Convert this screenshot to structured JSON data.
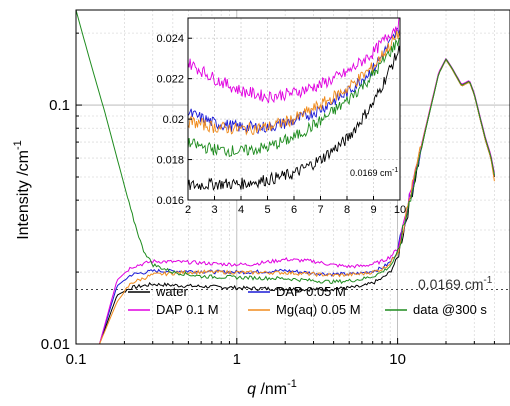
{
  "chart_data": {
    "type": "line",
    "xlabel": {
      "main": "q",
      "unit": " /nm",
      "sup": "-1"
    },
    "ylabel": {
      "main": "Intensity /cm",
      "sup": "-1"
    },
    "xscale": "log",
    "yscale": "log",
    "xlim": [
      0.1,
      50
    ],
    "ylim": [
      0.01,
      0.25
    ],
    "x_ticks": [
      "0.1",
      "1",
      "10"
    ],
    "y_ticks": [
      "0.01",
      "0.1"
    ],
    "grid": true,
    "reference_line": {
      "y": 0.0169,
      "label": "0.0169 cm",
      "sup": "-1",
      "style": "dotted"
    },
    "legend_position": "bottom-center",
    "series": [
      {
        "name": "water",
        "color": "#000000",
        "points": [
          [
            0.14,
            0.01
          ],
          [
            0.18,
            0.016
          ],
          [
            0.22,
            0.0172
          ],
          [
            0.3,
            0.0178
          ],
          [
            0.5,
            0.0175
          ],
          [
            0.8,
            0.0173
          ],
          [
            1.2,
            0.0171
          ],
          [
            2,
            0.017
          ],
          [
            3,
            0.0169
          ],
          [
            4,
            0.017
          ],
          [
            5,
            0.0172
          ],
          [
            6,
            0.0174
          ],
          [
            7,
            0.018
          ],
          [
            8,
            0.0188
          ],
          [
            9,
            0.02
          ],
          [
            10,
            0.023
          ],
          [
            12,
            0.04
          ],
          [
            15,
            0.08
          ],
          [
            18,
            0.135
          ],
          [
            20,
            0.155
          ],
          [
            22,
            0.14
          ],
          [
            25,
            0.12
          ],
          [
            28,
            0.125
          ],
          [
            30,
            0.11
          ],
          [
            35,
            0.072
          ],
          [
            38,
            0.06
          ],
          [
            40,
            0.05
          ]
        ]
      },
      {
        "name": "DAP 0.05 M",
        "color": "#1a1ad6",
        "points": [
          [
            0.14,
            0.01
          ],
          [
            0.18,
            0.0175
          ],
          [
            0.22,
            0.0195
          ],
          [
            0.3,
            0.0202
          ],
          [
            0.5,
            0.0202
          ],
          [
            0.8,
            0.02
          ],
          [
            1.2,
            0.02
          ],
          [
            2,
            0.0203
          ],
          [
            3,
            0.0198
          ],
          [
            4,
            0.0196
          ],
          [
            5,
            0.0196
          ],
          [
            6,
            0.0198
          ],
          [
            7,
            0.0202
          ],
          [
            8,
            0.0208
          ],
          [
            9,
            0.022
          ],
          [
            10,
            0.0245
          ],
          [
            12,
            0.042
          ],
          [
            15,
            0.081
          ],
          [
            18,
            0.136
          ],
          [
            20,
            0.156
          ],
          [
            22,
            0.141
          ],
          [
            25,
            0.121
          ],
          [
            28,
            0.126
          ],
          [
            30,
            0.111
          ],
          [
            35,
            0.073
          ],
          [
            38,
            0.061
          ],
          [
            40,
            0.051
          ]
        ]
      },
      {
        "name": "DAP 0.1 M",
        "color": "#e000e0",
        "points": [
          [
            0.14,
            0.01
          ],
          [
            0.18,
            0.0185
          ],
          [
            0.22,
            0.021
          ],
          [
            0.3,
            0.0222
          ],
          [
            0.5,
            0.022
          ],
          [
            0.8,
            0.0216
          ],
          [
            1.2,
            0.0215
          ],
          [
            2,
            0.0226
          ],
          [
            3,
            0.0222
          ],
          [
            4,
            0.0214
          ],
          [
            5,
            0.0211
          ],
          [
            6,
            0.0212
          ],
          [
            7,
            0.0216
          ],
          [
            8,
            0.0222
          ],
          [
            9,
            0.0232
          ],
          [
            10,
            0.025
          ],
          [
            12,
            0.043
          ],
          [
            15,
            0.082
          ],
          [
            18,
            0.137
          ],
          [
            20,
            0.157
          ],
          [
            22,
            0.142
          ],
          [
            25,
            0.122
          ],
          [
            28,
            0.127
          ],
          [
            30,
            0.112
          ],
          [
            35,
            0.074
          ],
          [
            38,
            0.062
          ],
          [
            40,
            0.052
          ]
        ]
      },
      {
        "name": "Mg(aq) 0.05 M",
        "color": "#f08c1e",
        "points": [
          [
            0.14,
            0.01
          ],
          [
            0.18,
            0.015
          ],
          [
            0.22,
            0.018
          ],
          [
            0.3,
            0.0195
          ],
          [
            0.5,
            0.02
          ],
          [
            0.8,
            0.02
          ],
          [
            1.2,
            0.0199
          ],
          [
            2,
            0.0199
          ],
          [
            3,
            0.0196
          ],
          [
            4,
            0.0194
          ],
          [
            5,
            0.0195
          ],
          [
            6,
            0.0197
          ],
          [
            7,
            0.02
          ],
          [
            8,
            0.0206
          ],
          [
            9,
            0.0218
          ],
          [
            10,
            0.0243
          ],
          [
            12,
            0.042
          ],
          [
            15,
            0.081
          ],
          [
            18,
            0.135
          ],
          [
            20,
            0.155
          ],
          [
            22,
            0.14
          ],
          [
            25,
            0.12
          ],
          [
            28,
            0.125
          ],
          [
            30,
            0.11
          ],
          [
            35,
            0.072
          ],
          [
            38,
            0.06
          ],
          [
            40,
            0.048
          ]
        ]
      },
      {
        "name": "data @300 s",
        "color": "#1f8c1f",
        "points": [
          [
            0.1,
            0.25
          ],
          [
            0.12,
            0.16
          ],
          [
            0.15,
            0.095
          ],
          [
            0.18,
            0.06
          ],
          [
            0.22,
            0.036
          ],
          [
            0.26,
            0.025
          ],
          [
            0.3,
            0.0215
          ],
          [
            0.4,
            0.02
          ],
          [
            0.6,
            0.0192
          ],
          [
            1,
            0.019
          ],
          [
            2,
            0.0188
          ],
          [
            3,
            0.0184
          ],
          [
            4,
            0.0182
          ],
          [
            5,
            0.0184
          ],
          [
            6,
            0.0187
          ],
          [
            7,
            0.0192
          ],
          [
            8,
            0.02
          ],
          [
            9,
            0.0212
          ],
          [
            10,
            0.0238
          ],
          [
            12,
            0.041
          ],
          [
            15,
            0.08
          ],
          [
            18,
            0.135
          ],
          [
            20,
            0.156
          ],
          [
            22,
            0.141
          ],
          [
            25,
            0.121
          ],
          [
            28,
            0.126
          ],
          [
            30,
            0.111
          ],
          [
            35,
            0.073
          ],
          [
            38,
            0.061
          ],
          [
            40,
            0.051
          ]
        ]
      }
    ],
    "inset": {
      "xscale": "linear",
      "xlim": [
        2,
        10
      ],
      "ylim": [
        0.016,
        0.025
      ],
      "x_ticks": [
        "2",
        "3",
        "4",
        "5",
        "6",
        "7",
        "8",
        "9",
        "10"
      ],
      "y_ticks": [
        "0.016",
        "0.018",
        "0.02",
        "0.022",
        "0.024"
      ],
      "annotation": {
        "label": "0.0169 cm",
        "sup": "-1"
      },
      "series": [
        {
          "name": "water",
          "color": "#000000",
          "points": [
            [
              2,
              0.0167
            ],
            [
              3,
              0.0168
            ],
            [
              4,
              0.0168
            ],
            [
              5,
              0.017
            ],
            [
              6,
              0.0173
            ],
            [
              7,
              0.018
            ],
            [
              8,
              0.019
            ],
            [
              9,
              0.0208
            ],
            [
              10,
              0.0235
            ]
          ]
        },
        {
          "name": "DAP 0.05 M",
          "color": "#1a1ad6",
          "points": [
            [
              2,
              0.0203
            ],
            [
              3,
              0.0198
            ],
            [
              4,
              0.0196
            ],
            [
              5,
              0.0196
            ],
            [
              6,
              0.0199
            ],
            [
              7,
              0.0205
            ],
            [
              8,
              0.0213
            ],
            [
              9,
              0.0225
            ],
            [
              10,
              0.0245
            ]
          ]
        },
        {
          "name": "DAP 0.1 M",
          "color": "#e000e0",
          "points": [
            [
              2,
              0.0228
            ],
            [
              3,
              0.022
            ],
            [
              4,
              0.0214
            ],
            [
              5,
              0.0211
            ],
            [
              6,
              0.0213
            ],
            [
              7,
              0.0217
            ],
            [
              8,
              0.0223
            ],
            [
              9,
              0.0233
            ],
            [
              10,
              0.0248
            ]
          ]
        },
        {
          "name": "Mg(aq) 0.05 M",
          "color": "#f08c1e",
          "points": [
            [
              2,
              0.0199
            ],
            [
              3,
              0.0196
            ],
            [
              4,
              0.0195
            ],
            [
              5,
              0.0196
            ],
            [
              6,
              0.02
            ],
            [
              7,
              0.0207
            ],
            [
              8,
              0.0215
            ],
            [
              9,
              0.0226
            ],
            [
              10,
              0.0243
            ]
          ]
        },
        {
          "name": "data @300 s",
          "color": "#1f8c1f",
          "points": [
            [
              2,
              0.0188
            ],
            [
              3,
              0.0185
            ],
            [
              4,
              0.0184
            ],
            [
              5,
              0.0186
            ],
            [
              6,
              0.0191
            ],
            [
              7,
              0.0199
            ],
            [
              8,
              0.0209
            ],
            [
              9,
              0.0222
            ],
            [
              10,
              0.024
            ]
          ]
        }
      ]
    }
  }
}
